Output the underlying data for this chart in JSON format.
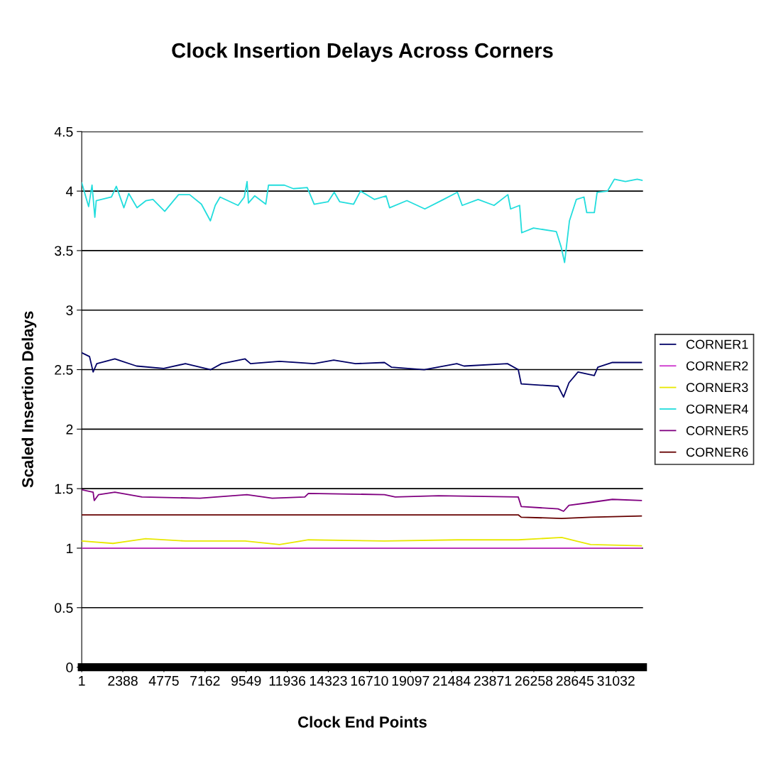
{
  "chart_data": {
    "type": "line",
    "title": "Clock Insertion Delays Across Corners",
    "xlabel": "Clock End Points",
    "ylabel": "Scaled Insertion Delays",
    "xlim": [
      1,
      32600
    ],
    "xticks": [
      1,
      2388,
      4775,
      7162,
      9549,
      11936,
      14323,
      16710,
      19097,
      21484,
      23871,
      26258,
      28645,
      31032
    ],
    "ylim": [
      0,
      4.5
    ],
    "yticks": [
      0,
      0.5,
      1,
      1.5,
      2,
      2.5,
      3,
      3.5,
      4,
      4.5
    ],
    "grid": "y",
    "legend": "right",
    "marker": "none",
    "line_style": "solid",
    "series": [
      {
        "name": "CORNER1",
        "color": "#000066",
        "x": [
          32,
          454,
          663,
          876,
          1925,
          3186,
          4761,
          6023,
          7494,
          8124,
          9491,
          9804,
          11487,
          13485,
          14638,
          15899,
          17583,
          18000,
          19893,
          21786,
          22205,
          24726,
          25354,
          25526,
          27668,
          27985,
          28299,
          28825,
          29770,
          29977,
          30822,
          32502
        ],
        "values": [
          2.64,
          2.61,
          2.48,
          2.55,
          2.59,
          2.53,
          2.51,
          2.55,
          2.5,
          2.55,
          2.59,
          2.55,
          2.57,
          2.55,
          2.58,
          2.55,
          2.56,
          2.52,
          2.5,
          2.55,
          2.53,
          2.55,
          2.5,
          2.38,
          2.36,
          2.27,
          2.39,
          2.48,
          2.45,
          2.52,
          2.56,
          2.56
        ]
      },
      {
        "name": "CORNER2",
        "color": "#cc33cc",
        "x": [
          1,
          32502
        ],
        "values": [
          1.0,
          1.0
        ]
      },
      {
        "name": "CORNER3",
        "color": "#e8e800",
        "x": [
          32,
          1820,
          3713,
          6023,
          9491,
          11487,
          13167,
          17583,
          21786,
          25354,
          27877,
          29560,
          32502
        ],
        "values": [
          1.06,
          1.04,
          1.08,
          1.06,
          1.06,
          1.03,
          1.07,
          1.06,
          1.07,
          1.07,
          1.09,
          1.03,
          1.02
        ]
      },
      {
        "name": "CORNER4",
        "color": "#22dddd",
        "x": [
          1,
          402,
          600,
          763,
          844,
          1728,
          2009,
          2451,
          2732,
          3214,
          3737,
          4139,
          4822,
          5625,
          6268,
          6951,
          7474,
          7755,
          8036,
          9081,
          9443,
          9604,
          9684,
          10046,
          10689,
          10850,
          11773,
          12295,
          13099,
          13501,
          14305,
          14666,
          14987,
          15791,
          16193,
          16996,
          17679,
          17880,
          18885,
          19929,
          21014,
          21818,
          22099,
          23023,
          23947,
          24751,
          24911,
          25434,
          25554,
          26237,
          27563,
          27845,
          28046,
          28327,
          28729,
          29171,
          29331,
          29773,
          29934,
          30536,
          30938,
          31581,
          32264,
          32545
        ],
        "values": [
          4.07,
          3.87,
          4.05,
          3.78,
          3.92,
          3.95,
          4.04,
          3.86,
          3.98,
          3.86,
          3.92,
          3.93,
          3.83,
          3.97,
          3.97,
          3.89,
          3.75,
          3.88,
          3.95,
          3.88,
          3.95,
          4.08,
          3.9,
          3.96,
          3.89,
          4.05,
          4.05,
          4.02,
          4.03,
          3.89,
          3.91,
          3.99,
          3.91,
          3.89,
          4.0,
          3.93,
          3.96,
          3.86,
          3.92,
          3.85,
          3.93,
          3.99,
          3.88,
          3.93,
          3.88,
          3.97,
          3.85,
          3.88,
          3.65,
          3.69,
          3.66,
          3.53,
          3.4,
          3.75,
          3.93,
          3.95,
          3.82,
          3.82,
          3.99,
          4.0,
          4.1,
          4.08,
          4.1,
          4.09
        ]
      },
      {
        "name": "CORNER5",
        "color": "#800080",
        "x": [
          32,
          663,
          728,
          980,
          1925,
          3500,
          6863,
          9595,
          11065,
          12958,
          13167,
          17583,
          18210,
          20733,
          25354,
          25526,
          27668,
          27985,
          28299,
          29347,
          30822,
          32502
        ],
        "values": [
          1.49,
          1.47,
          1.4,
          1.45,
          1.47,
          1.43,
          1.42,
          1.45,
          1.42,
          1.43,
          1.46,
          1.45,
          1.43,
          1.44,
          1.43,
          1.35,
          1.33,
          1.31,
          1.36,
          1.38,
          1.41,
          1.4
        ]
      },
      {
        "name": "CORNER6",
        "color": "#660000",
        "x": [
          32,
          25354,
          25526,
          27877,
          29560,
          32502
        ],
        "values": [
          1.28,
          1.28,
          1.26,
          1.25,
          1.26,
          1.27
        ]
      }
    ]
  }
}
